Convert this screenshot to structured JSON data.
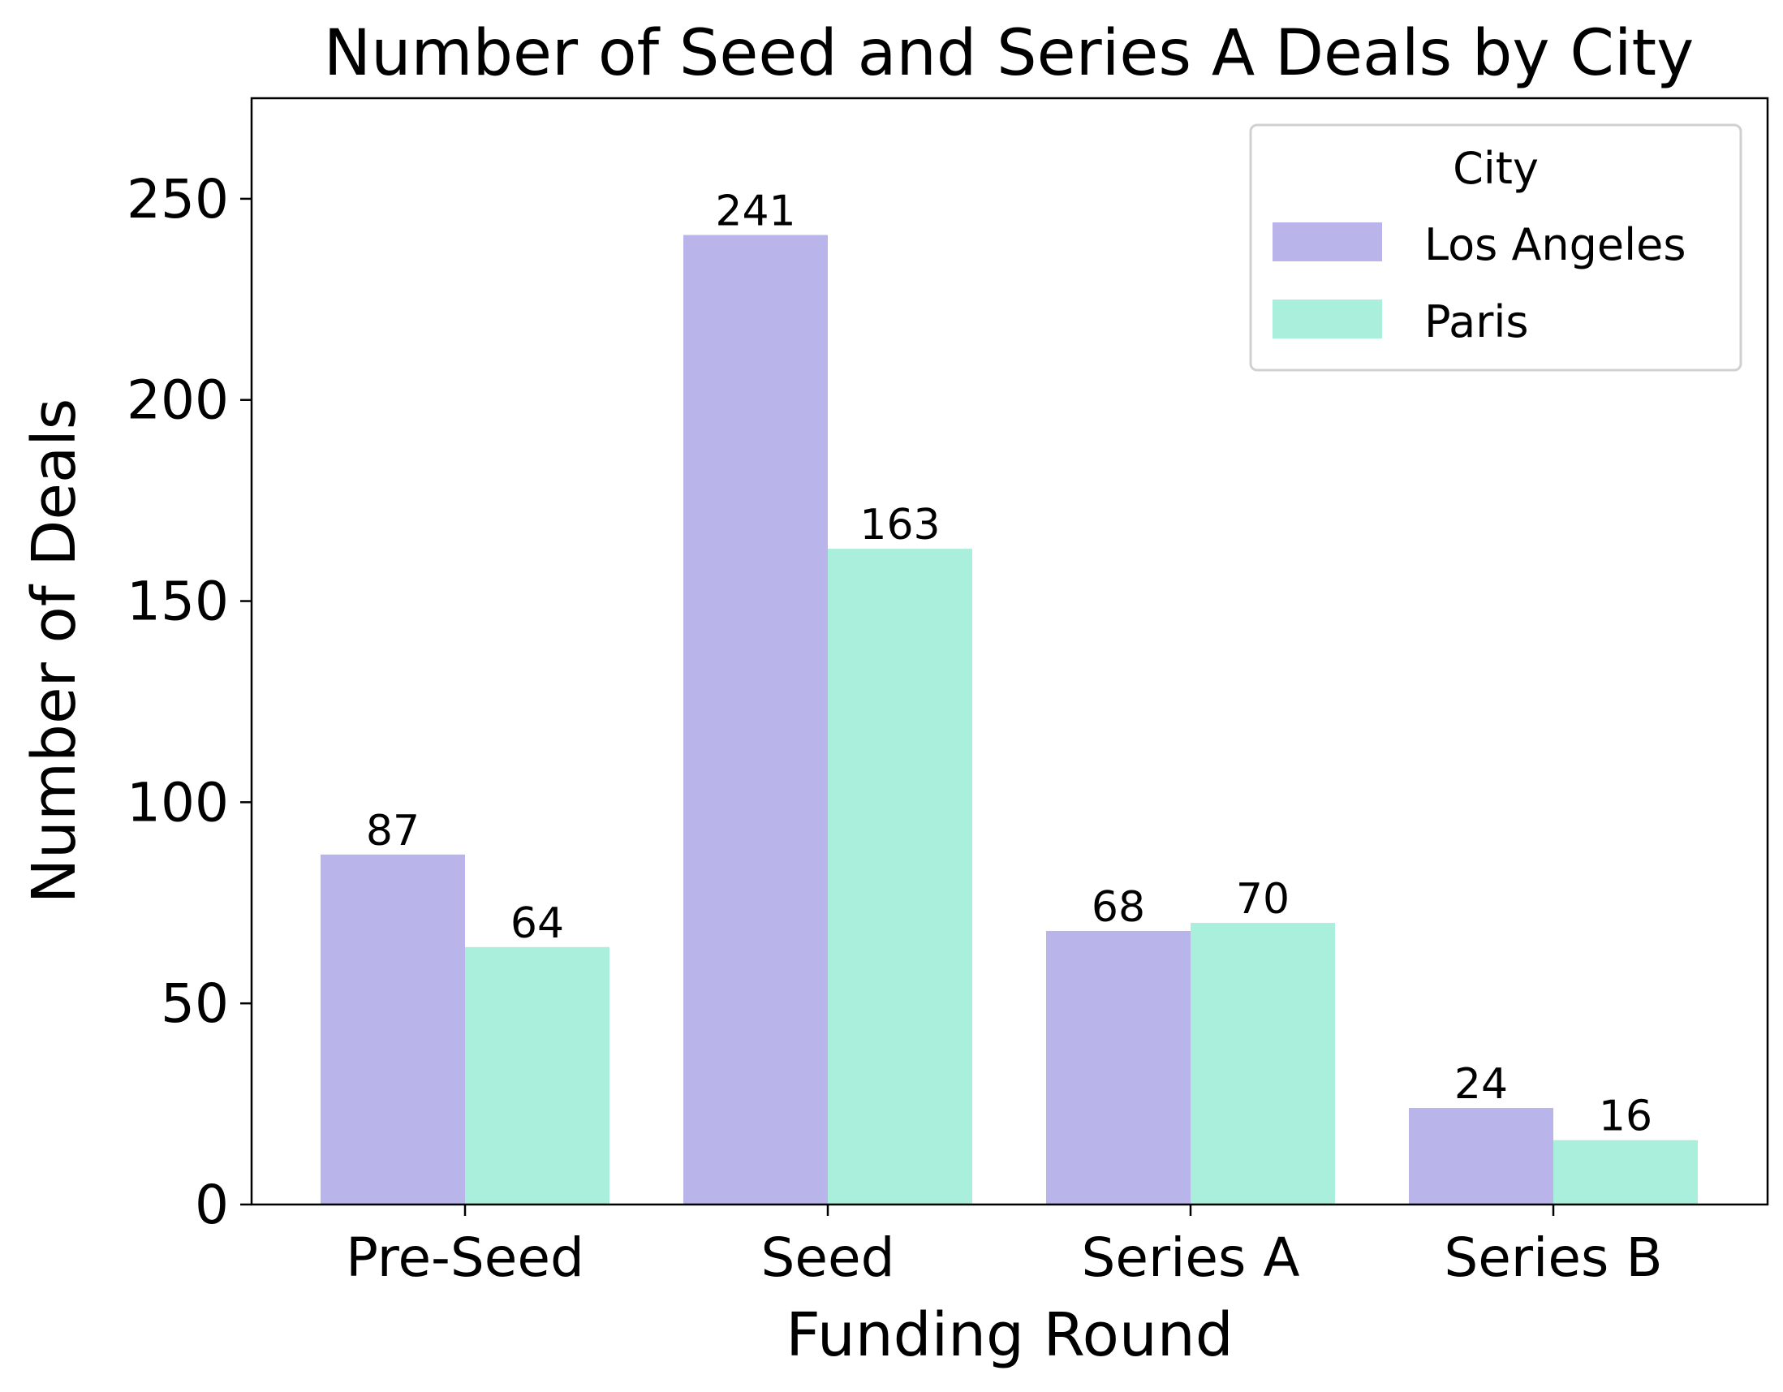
{
  "chart_data": {
    "type": "bar",
    "title": "Number of Seed and Series A Deals by City",
    "xlabel": "Funding Round",
    "ylabel": "Number of Deals",
    "categories": [
      "Pre-Seed",
      "Seed",
      "Series A",
      "Series B"
    ],
    "series": [
      {
        "name": "Los Angeles",
        "values": [
          87,
          241,
          68,
          24
        ],
        "color": "#b9b5ea"
      },
      {
        "name": "Paris",
        "values": [
          64,
          163,
          70,
          16
        ],
        "color": "#aaeedc"
      }
    ],
    "ylim": [
      0,
      275
    ],
    "yticks": [
      0,
      50,
      100,
      150,
      200,
      250
    ],
    "legend": {
      "title": "City",
      "placement": "top-right"
    },
    "grid": false
  }
}
